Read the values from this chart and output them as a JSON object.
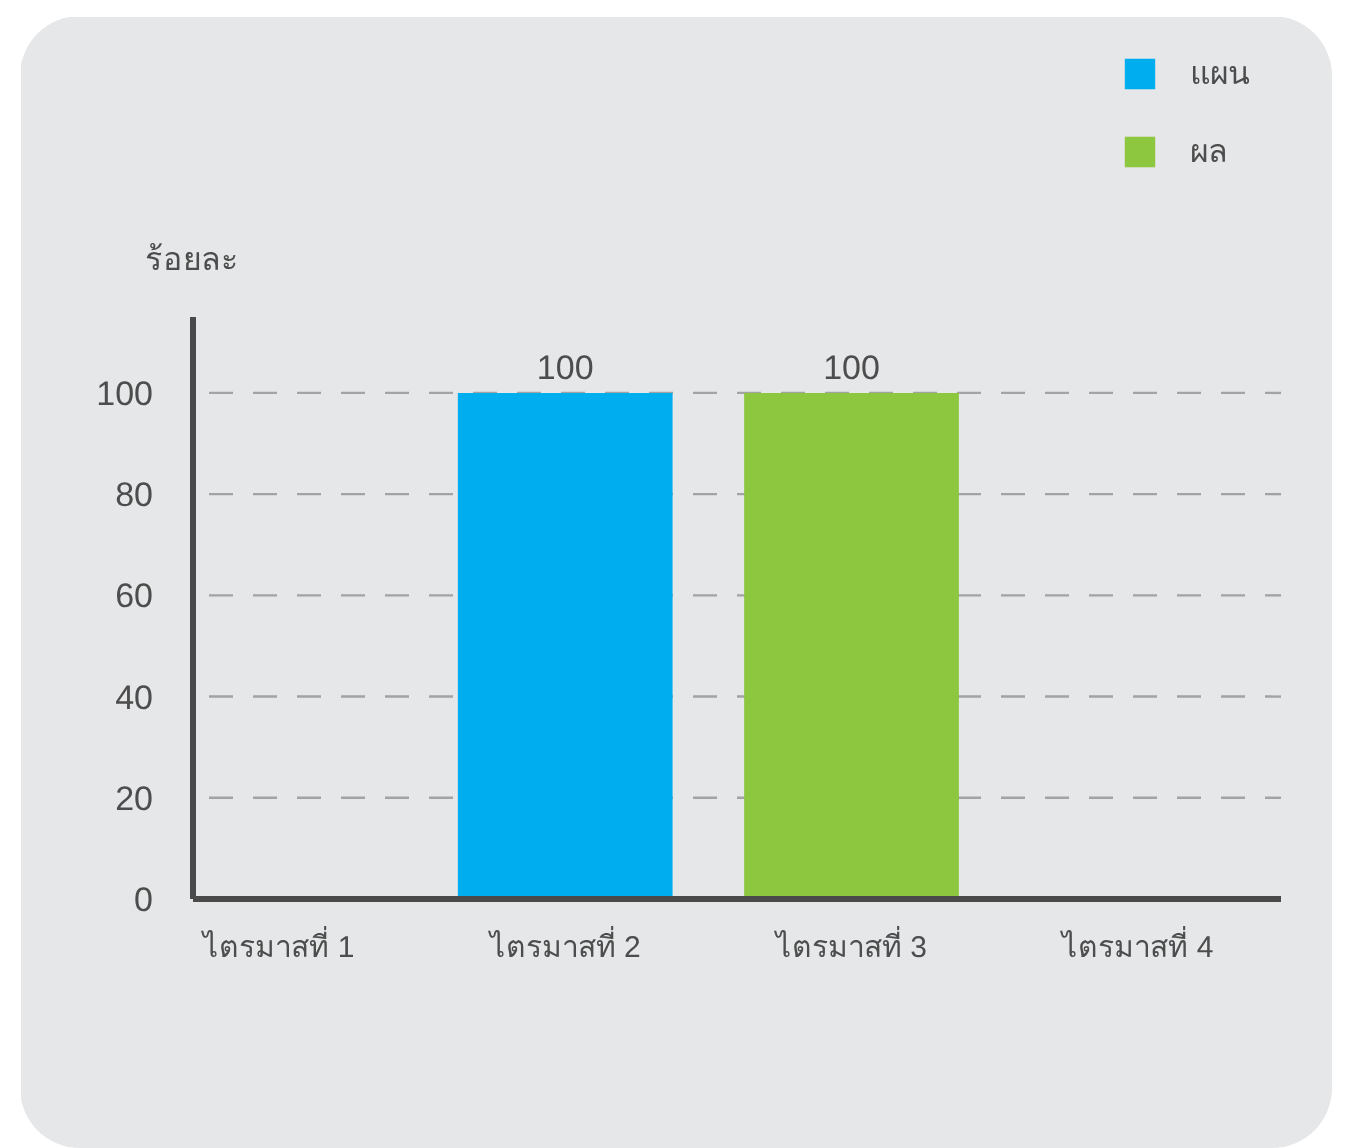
{
  "chart_data": {
    "type": "bar",
    "ylabel": "ร้อยละ",
    "categories": [
      "ไตรมาสที่ 1",
      "ไตรมาสที่ 2",
      "ไตรมาสที่ 3",
      "ไตรมาสที่ 4"
    ],
    "series": [
      {
        "name": "แผน",
        "color": "#00aeef",
        "values": [
          null,
          100,
          null,
          null
        ]
      },
      {
        "name": "ผล",
        "color": "#8dc63f",
        "values": [
          null,
          null,
          100,
          null
        ]
      }
    ],
    "stacked": true,
    "ylim": [
      0,
      115
    ],
    "yticks": [
      0,
      20,
      40,
      60,
      80,
      100
    ],
    "grid": "y",
    "legend": "top right",
    "data_labels": true
  }
}
